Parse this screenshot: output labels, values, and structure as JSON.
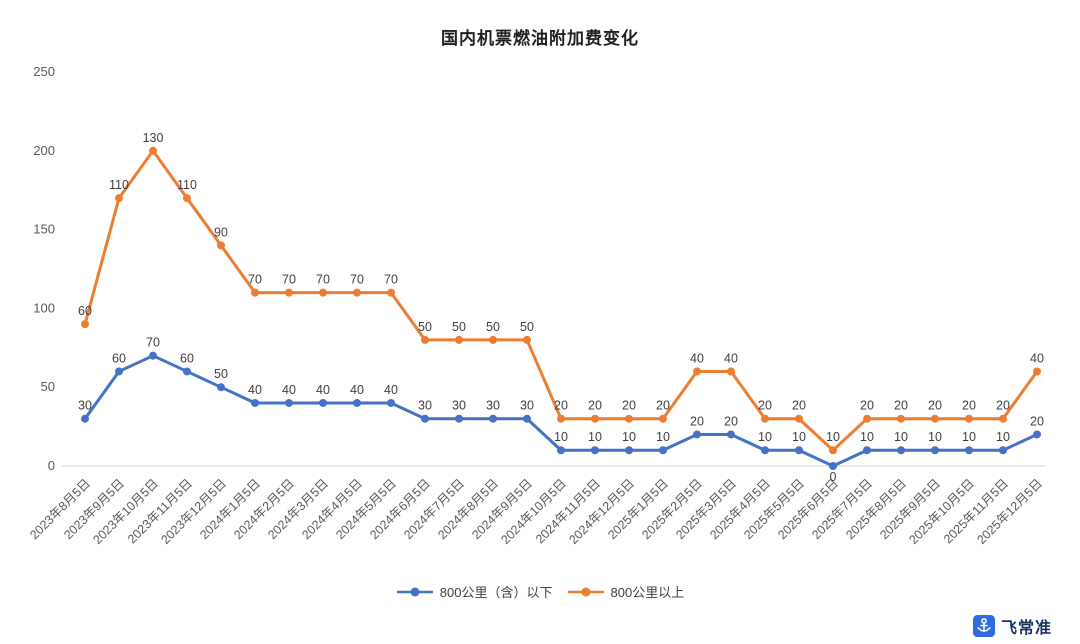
{
  "title": "国内机票燃油附加费变化",
  "chart_data": {
    "type": "line",
    "stacked": true,
    "title": "国内机票燃油附加费变化",
    "xlabel": "",
    "ylabel": "",
    "ylim": [
      0,
      250
    ],
    "yticks": [
      0,
      50,
      100,
      150,
      200,
      250
    ],
    "grid": false,
    "legend_position": "bottom",
    "categories": [
      "2023年8月5日",
      "2023年9月5日",
      "2023年10月5日",
      "2023年11月5日",
      "2023年12月5日",
      "2024年1月5日",
      "2024年2月5日",
      "2024年3月5日",
      "2024年4月5日",
      "2024年5月5日",
      "2024年6月5日",
      "2024年7月5日",
      "2024年8月5日",
      "2024年9月5日",
      "2024年10月5日",
      "2024年11月5日",
      "2024年12月5日",
      "2025年1月5日",
      "2025年2月5日",
      "2025年3月5日",
      "2025年4月5日",
      "2025年5月5日",
      "2025年6月5日",
      "2025年7月5日",
      "2025年8月5日",
      "2025年9月5日",
      "2025年10月5日",
      "2025年11月5日",
      "2025年12月5日"
    ],
    "series": [
      {
        "name": "800公里（含）以下",
        "color": "#4472C4",
        "values": [
          30,
          60,
          70,
          60,
          50,
          40,
          40,
          40,
          40,
          40,
          30,
          30,
          30,
          30,
          10,
          10,
          10,
          10,
          20,
          20,
          10,
          10,
          0,
          10,
          10,
          10,
          10,
          10,
          20
        ]
      },
      {
        "name": "800公里以上",
        "color": "#ED7D31",
        "values": [
          60,
          110,
          130,
          110,
          90,
          70,
          70,
          70,
          70,
          70,
          50,
          50,
          50,
          50,
          20,
          20,
          20,
          20,
          40,
          40,
          20,
          20,
          10,
          20,
          20,
          20,
          20,
          20,
          40
        ]
      }
    ]
  },
  "colors": {
    "axis_line": "#d6d6d6",
    "tick_text": "#595959",
    "data_label": "#3f3f3f"
  },
  "logo": {
    "text": "飞常准",
    "icon_color": "#2e6be0",
    "icon": "anchor-icon"
  }
}
